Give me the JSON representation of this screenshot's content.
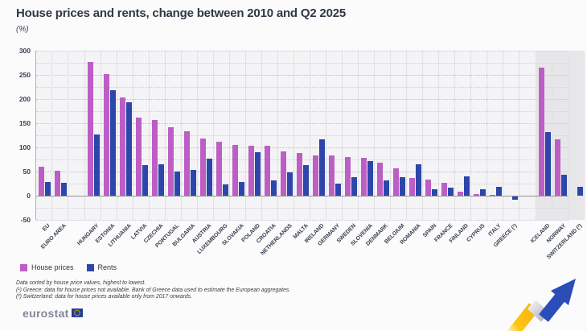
{
  "header": {
    "title": "House prices and rents, change between 2010 and Q2 2025",
    "subtitle": "(%)"
  },
  "chart_data": {
    "type": "bar",
    "title": "House prices and rents, change between 2010 and Q2 2025",
    "unit": "%",
    "ylim": [
      -50,
      300
    ],
    "yticks": [
      300,
      250,
      200,
      150,
      100,
      50,
      0,
      -50
    ],
    "grid": "dotted horizontal every 25, vertical per category",
    "legend_position": "bottom-left",
    "colors": {
      "house_prices": "#bc5ec6",
      "rents": "#2c46aa"
    },
    "series": [
      {
        "name": "House prices",
        "key": "house_prices"
      },
      {
        "name": "Rents",
        "key": "rents"
      }
    ],
    "groups": [
      {
        "name": "european-aggregates",
        "shaded": false,
        "items": [
          {
            "label": "EU",
            "house_prices": 60,
            "rents": 29
          },
          {
            "label": "EURO AREA",
            "house_prices": 52,
            "rents": 27
          }
        ]
      },
      {
        "name": "eu-countries",
        "shaded": false,
        "items": [
          {
            "label": "HUNGARY",
            "house_prices": 277,
            "rents": 126
          },
          {
            "label": "ESTONIA",
            "house_prices": 251,
            "rents": 219
          },
          {
            "label": "LITHUANIA",
            "house_prices": 204,
            "rents": 193
          },
          {
            "label": "LATVIA",
            "house_prices": 162,
            "rents": 64
          },
          {
            "label": "CZECHIA",
            "house_prices": 156,
            "rents": 65
          },
          {
            "label": "PORTUGAL",
            "house_prices": 142,
            "rents": 50
          },
          {
            "label": "BULGARIA",
            "house_prices": 133,
            "rents": 53
          },
          {
            "label": "AUSTRIA",
            "house_prices": 118,
            "rents": 76
          },
          {
            "label": "LUXEMBOURG",
            "house_prices": 112,
            "rents": 24
          },
          {
            "label": "SLOVAKIA",
            "house_prices": 105,
            "rents": 29
          },
          {
            "label": "POLAND",
            "house_prices": 104,
            "rents": 90
          },
          {
            "label": "CROATIA",
            "house_prices": 103,
            "rents": 32
          },
          {
            "label": "NETHERLANDS",
            "house_prices": 92,
            "rents": 48
          },
          {
            "label": "MALTA",
            "house_prices": 88,
            "rents": 64
          },
          {
            "label": "IRELAND",
            "house_prices": 84,
            "rents": 117
          },
          {
            "label": "GERMANY",
            "house_prices": 83,
            "rents": 25
          },
          {
            "label": "SWEDEN",
            "house_prices": 80,
            "rents": 39
          },
          {
            "label": "SLOVENIA",
            "house_prices": 79,
            "rents": 71
          },
          {
            "label": "DENMARK",
            "house_prices": 68,
            "rents": 32
          },
          {
            "label": "BELGIUM",
            "house_prices": 57,
            "rents": 39
          },
          {
            "label": "ROMANIA",
            "house_prices": 37,
            "rents": 65
          },
          {
            "label": "SPAIN",
            "house_prices": 33,
            "rents": 13
          },
          {
            "label": "FRANCE",
            "house_prices": 27,
            "rents": 17
          },
          {
            "label": "FINLAND",
            "house_prices": 8,
            "rents": 40
          },
          {
            "label": "CYPRUS",
            "house_prices": 3,
            "rents": 14
          },
          {
            "label": "ITALY",
            "house_prices": 1,
            "rents": 19
          },
          {
            "label": "GREECE (¹)",
            "house_prices": null,
            "rents": -8
          }
        ]
      },
      {
        "name": "efta-countries",
        "shaded": true,
        "items": [
          {
            "label": "ICELAND",
            "house_prices": 265,
            "rents": 131
          },
          {
            "label": "NORWAY",
            "house_prices": 117,
            "rents": 43
          },
          {
            "label": "SWITZERLAND (²)",
            "house_prices": null,
            "rents": 19
          }
        ]
      }
    ]
  },
  "footnotes": [
    "Data sorted by house price values, highest to lowest.",
    "(¹) Greece: data for house prices not available. Bank of Greece data used to estimate the European aggregates.",
    "(²) Switzerland: data for house prices available only from 2017 onwards."
  ],
  "footer": {
    "logo_text": "eurostat"
  }
}
